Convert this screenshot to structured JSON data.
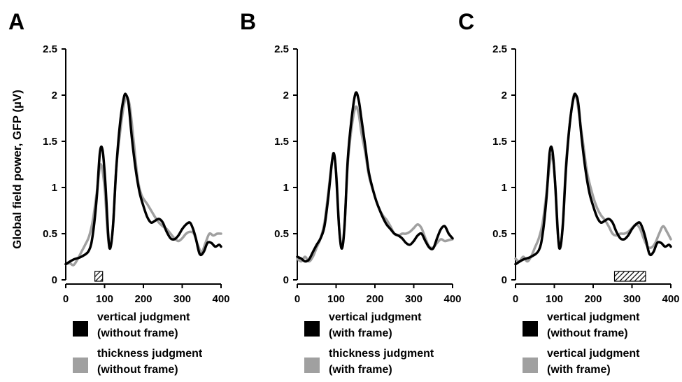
{
  "ylabel": "Global field power, GFP (µV)",
  "colors": {
    "series_a": "#000000",
    "series_b": "#a0a0a0"
  },
  "chart_data": [
    {
      "type": "line",
      "panel_letter": "A",
      "xlim": [
        0,
        400
      ],
      "ylim": [
        0,
        2.5
      ],
      "xticks": [
        "0",
        "100",
        "200",
        "300",
        "400"
      ],
      "yticks": [
        "0",
        "0.5",
        "1",
        "1.5",
        "2",
        "2.5"
      ],
      "series": [
        {
          "legend": [
            "vertical judgment",
            "(without frame)"
          ],
          "color": "#000000",
          "x": [
            0,
            20,
            40,
            60,
            70,
            80,
            88,
            95,
            102,
            110,
            115,
            122,
            130,
            140,
            150,
            156,
            162,
            170,
            180,
            190,
            200,
            210,
            220,
            230,
            240,
            250,
            260,
            270,
            280,
            290,
            300,
            310,
            320,
            328,
            335,
            345,
            355,
            365,
            375,
            385,
            395,
            400
          ],
          "y": [
            0.17,
            0.22,
            0.25,
            0.32,
            0.5,
            0.9,
            1.38,
            1.4,
            1.05,
            0.45,
            0.35,
            0.6,
            1.2,
            1.7,
            1.98,
            2.0,
            1.9,
            1.55,
            1.2,
            0.95,
            0.8,
            0.68,
            0.62,
            0.64,
            0.66,
            0.62,
            0.52,
            0.45,
            0.44,
            0.48,
            0.55,
            0.6,
            0.62,
            0.55,
            0.45,
            0.28,
            0.3,
            0.4,
            0.4,
            0.36,
            0.38,
            0.36
          ]
        },
        {
          "legend": [
            "thickness judgment",
            "(without frame)"
          ],
          "color": "#a0a0a0",
          "x": [
            0,
            10,
            20,
            30,
            40,
            50,
            60,
            70,
            80,
            90,
            100,
            108,
            115,
            122,
            130,
            140,
            150,
            157,
            165,
            175,
            185,
            195,
            210,
            220,
            230,
            240,
            250,
            260,
            270,
            280,
            290,
            300,
            310,
            320,
            330,
            340,
            350,
            360,
            370,
            380,
            390,
            400
          ],
          "y": [
            0.17,
            0.18,
            0.16,
            0.22,
            0.3,
            0.38,
            0.47,
            0.65,
            0.95,
            1.25,
            1.0,
            0.5,
            0.34,
            0.6,
            1.2,
            1.6,
            1.9,
            1.97,
            1.88,
            1.5,
            1.1,
            0.92,
            0.82,
            0.75,
            0.68,
            0.62,
            0.58,
            0.55,
            0.5,
            0.45,
            0.42,
            0.45,
            0.5,
            0.52,
            0.5,
            0.38,
            0.3,
            0.4,
            0.5,
            0.48,
            0.5,
            0.5
          ]
        }
      ],
      "significance_bar": [
        75,
        95
      ]
    },
    {
      "type": "line",
      "panel_letter": "B",
      "xlim": [
        0,
        400
      ],
      "ylim": [
        0,
        2.5
      ],
      "xticks": [
        "0",
        "100",
        "200",
        "300",
        "400"
      ],
      "yticks": [
        "0",
        "0.5",
        "1",
        "1.5",
        "2",
        "2.5"
      ],
      "series": [
        {
          "legend": [
            "vertical judgment",
            "(with frame)"
          ],
          "color": "#000000",
          "x": [
            0,
            10,
            20,
            30,
            40,
            50,
            60,
            70,
            80,
            90,
            95,
            100,
            108,
            115,
            122,
            130,
            140,
            150,
            158,
            165,
            175,
            185,
            200,
            210,
            220,
            230,
            240,
            250,
            260,
            270,
            280,
            290,
            300,
            310,
            320,
            330,
            340,
            350,
            360,
            370,
            380,
            390,
            400
          ],
          "y": [
            0.25,
            0.23,
            0.2,
            0.22,
            0.3,
            0.38,
            0.45,
            0.58,
            0.9,
            1.3,
            1.36,
            1.15,
            0.55,
            0.34,
            0.6,
            1.3,
            1.75,
            2.02,
            1.95,
            1.75,
            1.45,
            1.15,
            0.9,
            0.78,
            0.68,
            0.6,
            0.55,
            0.5,
            0.48,
            0.45,
            0.4,
            0.38,
            0.42,
            0.48,
            0.5,
            0.42,
            0.35,
            0.34,
            0.45,
            0.55,
            0.58,
            0.5,
            0.45
          ]
        },
        {
          "legend": [
            "thickness judgment",
            "(with frame)"
          ],
          "color": "#a0a0a0",
          "x": [
            0,
            10,
            20,
            30,
            40,
            50,
            60,
            70,
            80,
            90,
            96,
            102,
            108,
            115,
            122,
            130,
            140,
            150,
            158,
            165,
            175,
            185,
            200,
            210,
            220,
            230,
            240,
            250,
            260,
            270,
            280,
            290,
            300,
            310,
            320,
            330,
            340,
            350,
            360,
            370,
            380,
            390,
            400
          ],
          "y": [
            0.23,
            0.2,
            0.25,
            0.2,
            0.25,
            0.35,
            0.45,
            0.62,
            0.95,
            1.3,
            1.33,
            1.05,
            0.55,
            0.34,
            0.62,
            1.25,
            1.65,
            1.87,
            1.8,
            1.6,
            1.38,
            1.12,
            0.9,
            0.78,
            0.7,
            0.65,
            0.58,
            0.5,
            0.48,
            0.5,
            0.5,
            0.52,
            0.56,
            0.6,
            0.56,
            0.45,
            0.36,
            0.35,
            0.4,
            0.44,
            0.42,
            0.43,
            0.44
          ]
        }
      ]
    },
    {
      "type": "line",
      "panel_letter": "C",
      "xlim": [
        0,
        400
      ],
      "ylim": [
        0,
        2.5
      ],
      "xticks": [
        "0",
        "100",
        "200",
        "300",
        "400"
      ],
      "yticks": [
        "0",
        "0.5",
        "1",
        "1.5",
        "2",
        "2.5"
      ],
      "series": [
        {
          "legend": [
            "vertical judgment",
            "(without frame)"
          ],
          "color": "#000000",
          "x": [
            0,
            20,
            40,
            60,
            70,
            80,
            88,
            95,
            102,
            110,
            115,
            122,
            130,
            140,
            150,
            156,
            162,
            170,
            180,
            190,
            200,
            210,
            220,
            230,
            240,
            250,
            260,
            270,
            280,
            290,
            300,
            310,
            320,
            328,
            335,
            345,
            355,
            365,
            375,
            385,
            395,
            400
          ],
          "y": [
            0.17,
            0.22,
            0.25,
            0.32,
            0.5,
            0.9,
            1.38,
            1.4,
            1.05,
            0.45,
            0.35,
            0.6,
            1.2,
            1.7,
            1.98,
            2.0,
            1.9,
            1.55,
            1.2,
            0.95,
            0.8,
            0.68,
            0.62,
            0.64,
            0.66,
            0.62,
            0.52,
            0.45,
            0.44,
            0.48,
            0.55,
            0.6,
            0.62,
            0.55,
            0.45,
            0.28,
            0.3,
            0.4,
            0.4,
            0.36,
            0.38,
            0.36
          ]
        },
        {
          "legend": [
            "vertical judgment",
            "(with frame)"
          ],
          "color": "#a0a0a0",
          "x": [
            0,
            10,
            20,
            30,
            40,
            50,
            60,
            70,
            80,
            90,
            96,
            102,
            108,
            115,
            122,
            130,
            140,
            150,
            158,
            165,
            175,
            185,
            200,
            210,
            220,
            230,
            240,
            250,
            260,
            270,
            280,
            290,
            300,
            310,
            320,
            330,
            340,
            350,
            360,
            370,
            380,
            390,
            400
          ],
          "y": [
            0.23,
            0.2,
            0.25,
            0.2,
            0.25,
            0.35,
            0.45,
            0.62,
            0.95,
            1.3,
            1.33,
            1.05,
            0.55,
            0.34,
            0.62,
            1.25,
            1.7,
            2.0,
            1.95,
            1.75,
            1.45,
            1.15,
            0.9,
            0.78,
            0.7,
            0.65,
            0.58,
            0.5,
            0.48,
            0.5,
            0.5,
            0.52,
            0.56,
            0.6,
            0.56,
            0.45,
            0.36,
            0.35,
            0.4,
            0.5,
            0.58,
            0.52,
            0.44
          ]
        }
      ],
      "significance_bar": [
        255,
        335
      ]
    }
  ]
}
